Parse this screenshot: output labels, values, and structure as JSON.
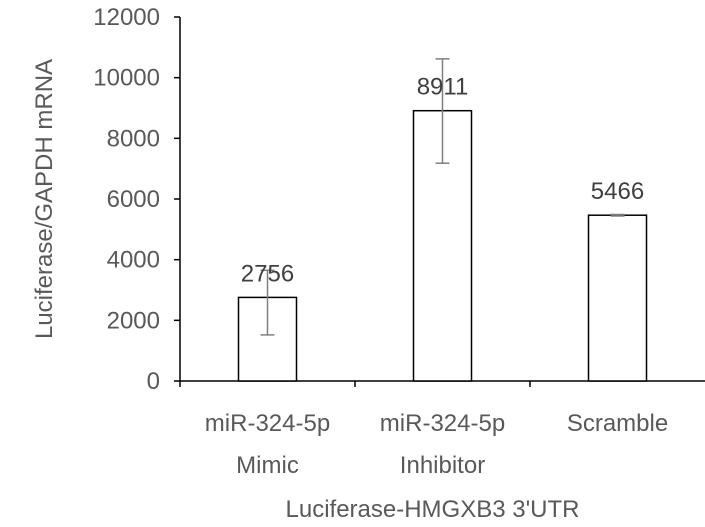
{
  "chart_data": {
    "type": "bar",
    "categories": [
      [
        "miR-324-5p",
        "Mimic"
      ],
      [
        "miR-324-5p",
        "Inhibitor"
      ],
      [
        "Scramble"
      ]
    ],
    "values": [
      2756,
      8911,
      5466
    ],
    "error_bars": [
      [
        1520,
        3650
      ],
      [
        7180,
        10620
      ],
      [
        5440,
        5490
      ]
    ],
    "data_labels": [
      "2756",
      "8911",
      "5466"
    ],
    "xlabel": "Luciferase-HMGXB3 3'UTR",
    "ylabel": "Luciferase/GAPDH mRNA",
    "ylim": [
      0,
      12000
    ],
    "yticks": [
      "0",
      "2000",
      "4000",
      "6000",
      "8000",
      "10000",
      "12000"
    ],
    "grid": false,
    "legend": "none",
    "colors": {
      "bar_fill": "#ffffff",
      "bar_stroke": "#000000",
      "axis": "#000000",
      "error_bar": "#7f7f7f",
      "text": "#595959"
    }
  }
}
